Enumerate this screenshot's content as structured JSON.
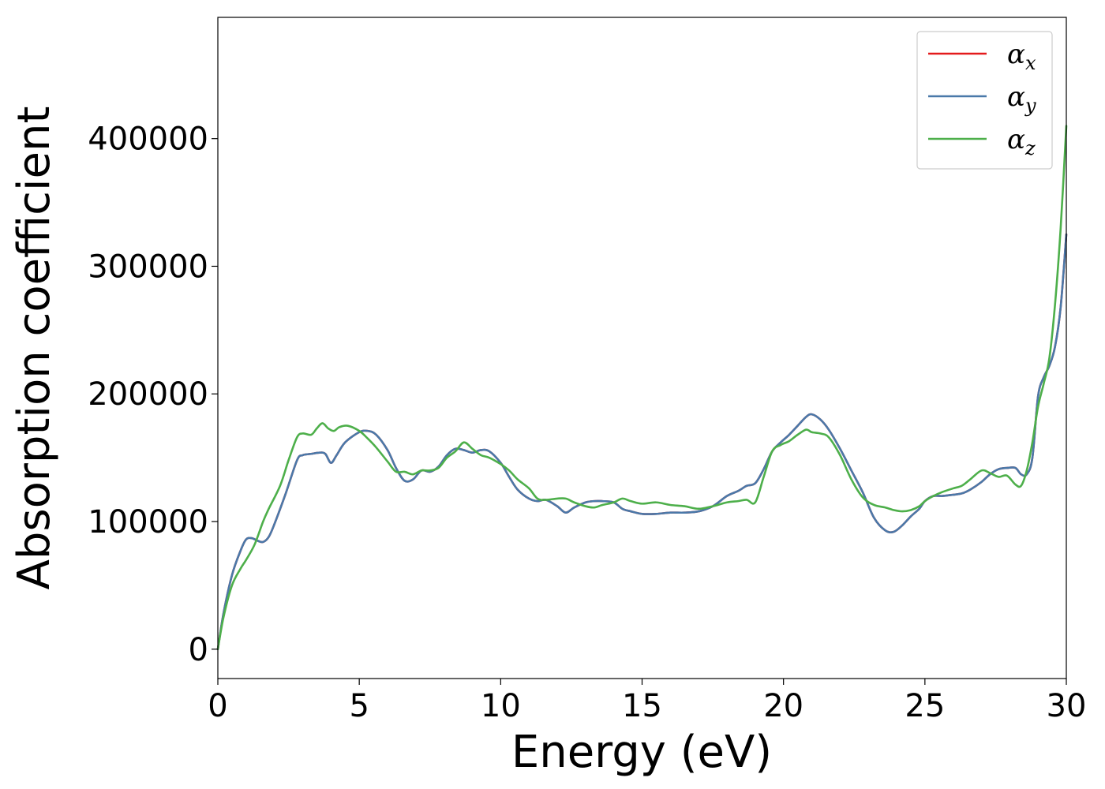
{
  "chart_data": {
    "type": "line",
    "xlabel": "Energy (eV)",
    "ylabel": "Absorption coefficient",
    "xlim": [
      0,
      30
    ],
    "ylim": [
      -23000,
      495000
    ],
    "xticks": [
      0,
      5,
      10,
      15,
      20,
      25,
      30
    ],
    "xtick_labels": [
      "0",
      "5",
      "10",
      "15",
      "20",
      "25",
      "30"
    ],
    "yticks": [
      0,
      100000,
      200000,
      300000,
      400000
    ],
    "ytick_labels": [
      "0",
      "100000",
      "200000",
      "300000",
      "400000"
    ],
    "grid": false,
    "legend_position": "top-right",
    "series": [
      {
        "name": "α_x",
        "symbol": "α",
        "subscript": "x",
        "color": "#e41a1c",
        "x": [
          0,
          0.2,
          0.5,
          0.8,
          1.0,
          1.2,
          1.4,
          1.6,
          1.8,
          2.0,
          2.4,
          2.8,
          3.0,
          3.3,
          3.6,
          3.8,
          4.0,
          4.2,
          4.5,
          5.0,
          5.3,
          5.6,
          6.0,
          6.3,
          6.6,
          6.9,
          7.2,
          7.5,
          7.8,
          8.1,
          8.4,
          8.7,
          9.0,
          9.3,
          9.6,
          10.0,
          10.3,
          10.6,
          11.0,
          11.3,
          11.6,
          12.0,
          12.3,
          12.6,
          13.0,
          13.3,
          13.6,
          14.0,
          14.3,
          14.6,
          15.0,
          15.5,
          16.0,
          16.5,
          17.0,
          17.5,
          18.0,
          18.4,
          18.7,
          19.0,
          19.3,
          19.6,
          19.9,
          20.2,
          20.5,
          20.8,
          21.0,
          21.3,
          21.6,
          22.0,
          22.4,
          22.8,
          23.2,
          23.6,
          23.9,
          24.2,
          24.5,
          24.8,
          25.0,
          25.3,
          25.6,
          26.0,
          26.3,
          26.6,
          27.0,
          27.3,
          27.6,
          27.9,
          28.2,
          28.4,
          28.6,
          28.8,
          29.0,
          29.2,
          29.4,
          29.6,
          29.8,
          30.0
        ],
        "y": [
          0,
          28000,
          58000,
          77000,
          86000,
          87000,
          85000,
          84000,
          88000,
          98000,
          122000,
          148000,
          152000,
          153000,
          154000,
          153000,
          146000,
          152000,
          162000,
          170000,
          171000,
          168000,
          156000,
          142000,
          132000,
          133000,
          140000,
          139000,
          143000,
          152000,
          157000,
          156000,
          154000,
          156000,
          155000,
          146000,
          135000,
          125000,
          118000,
          116000,
          117000,
          112000,
          107000,
          111000,
          115000,
          116000,
          116000,
          115000,
          110000,
          108000,
          106000,
          106000,
          107000,
          107000,
          108000,
          112000,
          120000,
          124000,
          128000,
          130000,
          141000,
          155000,
          162000,
          168000,
          175000,
          182000,
          184000,
          180000,
          172000,
          157000,
          140000,
          123000,
          103000,
          93000,
          92000,
          97000,
          104000,
          110000,
          116000,
          120000,
          120000,
          121000,
          122000,
          125000,
          131000,
          137000,
          141000,
          142000,
          142000,
          137000,
          137000,
          150000,
          198000,
          213000,
          222000,
          237000,
          268000,
          325000
        ]
      },
      {
        "name": "α_y",
        "symbol": "α",
        "subscript": "y",
        "color": "#4a79a9",
        "x": [
          0,
          0.2,
          0.5,
          0.8,
          1.0,
          1.2,
          1.4,
          1.6,
          1.8,
          2.0,
          2.4,
          2.8,
          3.0,
          3.3,
          3.6,
          3.8,
          4.0,
          4.2,
          4.5,
          5.0,
          5.3,
          5.6,
          6.0,
          6.3,
          6.6,
          6.9,
          7.2,
          7.5,
          7.8,
          8.1,
          8.4,
          8.7,
          9.0,
          9.3,
          9.6,
          10.0,
          10.3,
          10.6,
          11.0,
          11.3,
          11.6,
          12.0,
          12.3,
          12.6,
          13.0,
          13.3,
          13.6,
          14.0,
          14.3,
          14.6,
          15.0,
          15.5,
          16.0,
          16.5,
          17.0,
          17.5,
          18.0,
          18.4,
          18.7,
          19.0,
          19.3,
          19.6,
          19.9,
          20.2,
          20.5,
          20.8,
          21.0,
          21.3,
          21.6,
          22.0,
          22.4,
          22.8,
          23.2,
          23.6,
          23.9,
          24.2,
          24.5,
          24.8,
          25.0,
          25.3,
          25.6,
          26.0,
          26.3,
          26.6,
          27.0,
          27.3,
          27.6,
          27.9,
          28.2,
          28.4,
          28.6,
          28.8,
          29.0,
          29.2,
          29.4,
          29.6,
          29.8,
          30.0
        ],
        "y": [
          0,
          28000,
          58000,
          77000,
          86000,
          87000,
          85000,
          84000,
          88000,
          98000,
          122000,
          148000,
          152000,
          153000,
          154000,
          153000,
          146000,
          152000,
          162000,
          170000,
          171000,
          168000,
          156000,
          142000,
          132000,
          133000,
          140000,
          139000,
          143000,
          152000,
          157000,
          156000,
          154000,
          156000,
          155000,
          146000,
          135000,
          125000,
          118000,
          116000,
          117000,
          112000,
          107000,
          111000,
          115000,
          116000,
          116000,
          115000,
          110000,
          108000,
          106000,
          106000,
          107000,
          107000,
          108000,
          112000,
          120000,
          124000,
          128000,
          130000,
          141000,
          155000,
          162000,
          168000,
          175000,
          182000,
          184000,
          180000,
          172000,
          157000,
          140000,
          123000,
          103000,
          93000,
          92000,
          97000,
          104000,
          110000,
          116000,
          120000,
          120000,
          121000,
          122000,
          125000,
          131000,
          137000,
          141000,
          142000,
          142000,
          137000,
          137000,
          150000,
          198000,
          213000,
          222000,
          237000,
          268000,
          325000
        ]
      },
      {
        "name": "α_z",
        "symbol": "α",
        "subscript": "z",
        "color": "#4daf4a",
        "x": [
          0,
          0.2,
          0.5,
          0.8,
          1.0,
          1.3,
          1.6,
          1.8,
          2.2,
          2.5,
          2.8,
          3.0,
          3.3,
          3.5,
          3.7,
          3.9,
          4.1,
          4.3,
          4.6,
          5.0,
          5.3,
          5.6,
          6.0,
          6.3,
          6.6,
          6.9,
          7.2,
          7.5,
          7.8,
          8.1,
          8.4,
          8.7,
          9.0,
          9.3,
          9.6,
          10.0,
          10.3,
          10.6,
          11.0,
          11.3,
          11.6,
          12.0,
          12.3,
          12.6,
          13.0,
          13.3,
          13.6,
          14.0,
          14.3,
          14.6,
          15.0,
          15.5,
          16.0,
          16.5,
          17.0,
          17.5,
          18.0,
          18.4,
          18.7,
          19.0,
          19.3,
          19.6,
          19.9,
          20.2,
          20.5,
          20.8,
          21.0,
          21.3,
          21.6,
          22.0,
          22.4,
          22.8,
          23.2,
          23.6,
          23.9,
          24.2,
          24.5,
          24.8,
          25.0,
          25.3,
          25.6,
          26.0,
          26.3,
          26.6,
          27.0,
          27.3,
          27.6,
          27.9,
          28.2,
          28.4,
          28.6,
          28.8,
          29.0,
          29.2,
          29.4,
          29.6,
          29.8,
          30.0
        ],
        "y": [
          0,
          25000,
          50000,
          63000,
          70000,
          82000,
          100000,
          110000,
          128000,
          148000,
          166000,
          169000,
          168000,
          173000,
          177000,
          173000,
          171000,
          174000,
          175000,
          171000,
          165000,
          158000,
          147000,
          139000,
          139000,
          137000,
          140000,
          140000,
          142000,
          150000,
          155000,
          162000,
          157000,
          152000,
          150000,
          145000,
          140000,
          133000,
          126000,
          118000,
          117000,
          118000,
          118000,
          115000,
          112000,
          111000,
          113000,
          115000,
          118000,
          116000,
          114000,
          115000,
          113000,
          112000,
          110000,
          112000,
          115000,
          116000,
          117000,
          115000,
          135000,
          155000,
          160000,
          163000,
          168000,
          172000,
          170000,
          169000,
          166000,
          152000,
          133000,
          119000,
          113000,
          111000,
          109000,
          108000,
          109000,
          112000,
          116000,
          120000,
          123000,
          126000,
          128000,
          133000,
          140000,
          138000,
          135000,
          136000,
          129000,
          128000,
          140000,
          162000,
          190000,
          208000,
          228000,
          270000,
          330000,
          410000
        ]
      }
    ]
  }
}
